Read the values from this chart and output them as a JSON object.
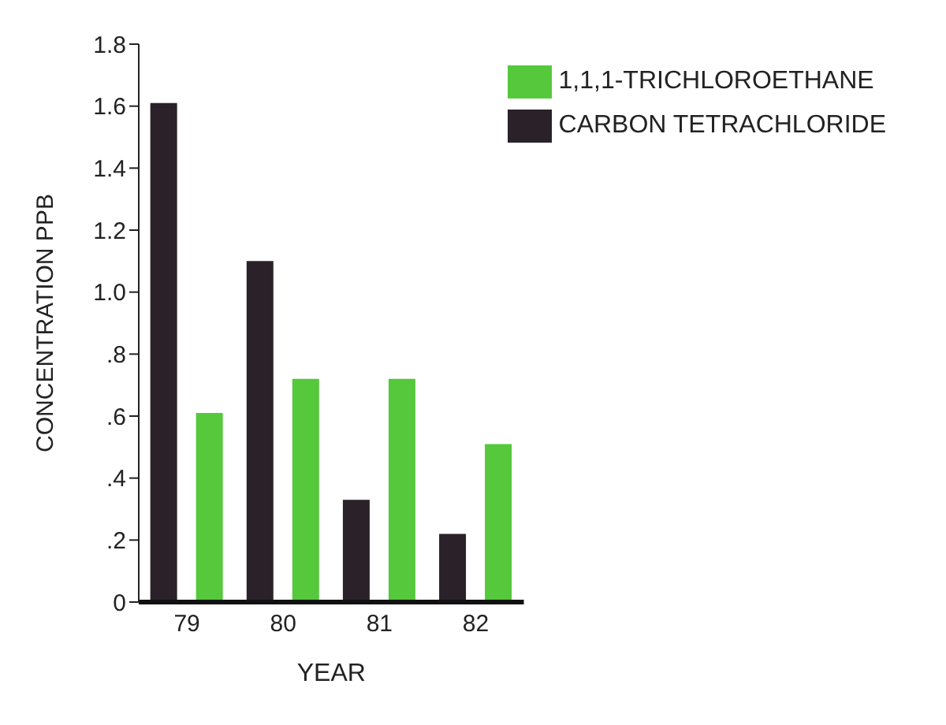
{
  "chart_data": {
    "type": "bar",
    "xlabel": "YEAR",
    "ylabel": "CONCENTRATION PPB",
    "categories": [
      "79",
      "80",
      "81",
      "82"
    ],
    "series": [
      {
        "name": "CARBON TETRACHLORIDE",
        "color": "#2a2228",
        "values": [
          1.61,
          1.1,
          0.33,
          0.22
        ]
      },
      {
        "name": "1,1,1-TRICHLOROETHANE",
        "color": "#55c83c",
        "values": [
          0.61,
          0.72,
          0.72,
          0.51
        ]
      }
    ],
    "ylim": [
      0,
      1.8
    ],
    "yticks": [
      0,
      {
        "value": 0.2,
        "label": ".2"
      },
      {
        "value": 0.4,
        "label": ".4"
      },
      {
        "value": 0.6,
        "label": ".6"
      },
      {
        "value": 0.8,
        "label": ".8"
      },
      {
        "value": 1,
        "label": "1.0"
      },
      {
        "value": 1.2,
        "label": "1.2"
      },
      {
        "value": 1.4,
        "label": "1.4"
      },
      {
        "value": 1.6,
        "label": "1.6"
      },
      {
        "value": 1.8,
        "label": "1.8"
      }
    ],
    "grid": false,
    "legend": "top right"
  }
}
